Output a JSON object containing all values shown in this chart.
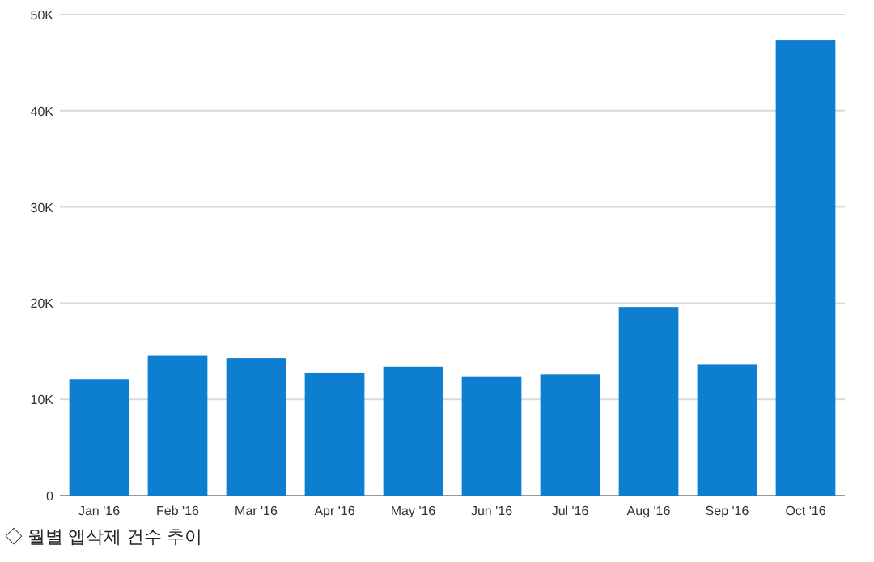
{
  "chart_data": {
    "type": "bar",
    "categories": [
      "Jan '16",
      "Feb '16",
      "Mar '16",
      "Apr '16",
      "May '16",
      "Jun '16",
      "Jul '16",
      "Aug '16",
      "Sep '16",
      "Oct '16"
    ],
    "values": [
      12100,
      14600,
      14300,
      12800,
      13400,
      12400,
      12600,
      19600,
      13600,
      47300
    ],
    "color": "#0e7fd0",
    "ylim": [
      0,
      50000
    ],
    "yticks": [
      {
        "value": 0,
        "label": "0"
      },
      {
        "value": 10000,
        "label": "10K"
      },
      {
        "value": 20000,
        "label": "20K"
      },
      {
        "value": 30000,
        "label": "30K"
      },
      {
        "value": 40000,
        "label": "40K"
      },
      {
        "value": 50000,
        "label": "50K"
      }
    ],
    "grid": "y",
    "annotations": [
      "◇ 월별 앱삭제 건수 추이"
    ]
  }
}
